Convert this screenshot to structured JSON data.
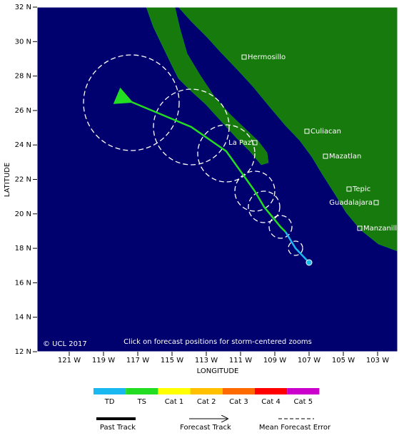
{
  "map": {
    "lat_ticks": [
      "12 N",
      "14 N",
      "16 N",
      "18 N",
      "20 N",
      "22 N",
      "24 N",
      "26 N",
      "28 N",
      "30 N",
      "32 N"
    ],
    "lon_ticks": [
      "121 W",
      "119 W",
      "117 W",
      "115 W",
      "113 W",
      "111 W",
      "109 W",
      "107 W",
      "105 W",
      "103 W"
    ],
    "y_axis_label": "LATITUDE",
    "x_axis_label": "LONGITUDE",
    "cities": [
      "Hermosillo",
      "Culiacan",
      "La Paz",
      "Mazatlan",
      "Tepic",
      "Guadalajara",
      "Manzanillo"
    ],
    "copyright": "© UCL 2017",
    "note": "Click on forecast positions for storm-centered zooms"
  },
  "legend": {
    "categories": [
      "TD",
      "TS",
      "Cat 1",
      "Cat 2",
      "Cat 3",
      "Cat 4",
      "Cat 5"
    ],
    "past_track": "Past Track",
    "forecast_track": "Forecast Track",
    "error": "Mean Forecast Error"
  }
}
